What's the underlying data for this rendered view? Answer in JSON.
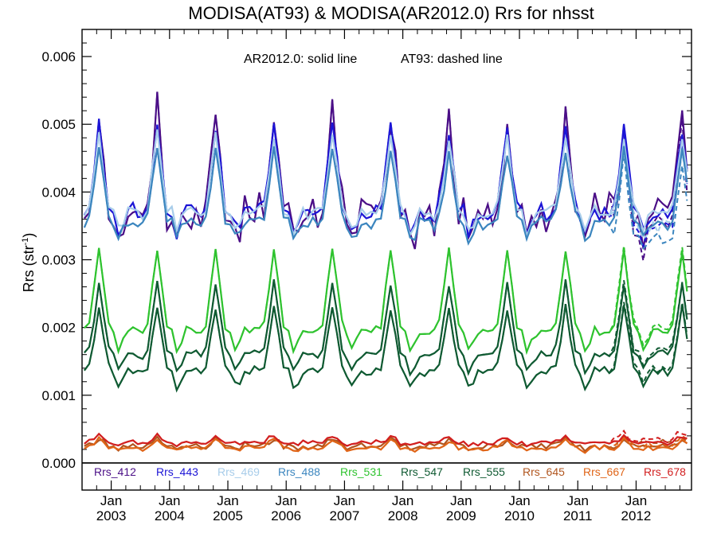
{
  "chart_data": {
    "type": "line",
    "title": "MODISA(AT93) & MODISA(AR2012.0)  Rrs for nhsst",
    "ylabel": "Rrs (str",
    "ylabel_sup": "-1",
    "ylabel_close": ")",
    "annotation_solid": "AR2012.0: solid line",
    "annotation_dashed": "AT93: dashed line",
    "xlim": [
      2002.5,
      2012.95
    ],
    "ylim": [
      -0.0004,
      0.0064
    ],
    "yticks": [
      "0.000",
      "0.001",
      "0.002",
      "0.003",
      "0.004",
      "0.005",
      "0.006"
    ],
    "ytick_values": [
      0,
      0.001,
      0.002,
      0.003,
      0.004,
      0.005,
      0.006
    ],
    "xticks": [
      {
        "month": "Jan",
        "year": "2003",
        "x": 2003
      },
      {
        "month": "Jan",
        "year": "2004",
        "x": 2004
      },
      {
        "month": "Jan",
        "year": "2005",
        "x": 2005
      },
      {
        "month": "Jan",
        "year": "2006",
        "x": 2006
      },
      {
        "month": "Jan",
        "year": "2007",
        "x": 2007
      },
      {
        "month": "Jan",
        "year": "2008",
        "x": 2008
      },
      {
        "month": "Jan",
        "year": "2009",
        "x": 2009
      },
      {
        "month": "Jan",
        "year": "2010",
        "x": 2010
      },
      {
        "month": "Jan",
        "year": "2011",
        "x": 2011
      },
      {
        "month": "Jan",
        "year": "2012",
        "x": 2012
      }
    ],
    "zero_line": 0,
    "grid": false,
    "legend_position": "bottom-inside",
    "series": [
      {
        "name": "Rrs_412",
        "color": "#4b0f87",
        "base": 0.00365,
        "amp": 0.0015,
        "noise": 0.00024
      },
      {
        "name": "Rrs_443",
        "color": "#1c15d6",
        "base": 0.0037,
        "amp": 0.00125,
        "noise": 0.0001
      },
      {
        "name": "Rrs_469",
        "color": "#a8cdea",
        "base": 0.0037,
        "amp": 0.0011,
        "noise": 8e-05
      },
      {
        "name": "Rrs_488",
        "color": "#3c86bf",
        "base": 0.00355,
        "amp": 0.00105,
        "noise": 8e-05
      },
      {
        "name": "Rrs_531",
        "color": "#2fc32f",
        "base": 0.00195,
        "amp": 0.0012,
        "noise": 5e-05
      },
      {
        "name": "Rrs_547",
        "color": "#0f5a32",
        "base": 0.0016,
        "amp": 0.00105,
        "noise": 5e-05
      },
      {
        "name": "Rrs_555",
        "color": "#0f5a32",
        "base": 0.00135,
        "amp": 0.00095,
        "noise": 5e-05
      },
      {
        "name": "Rrs_645",
        "color": "#b1561f",
        "base": 0.00025,
        "amp": 0.0001,
        "noise": 4e-05
      },
      {
        "name": "Rrs_667",
        "color": "#e06518",
        "base": 0.00022,
        "amp": 0.00012,
        "noise": 3e-05
      },
      {
        "name": "Rrs_678",
        "color": "#d21f1f",
        "base": 0.0003,
        "amp": 0.0001,
        "noise": 3e-05
      }
    ],
    "dashed_divergence_start": 2011.6
  }
}
